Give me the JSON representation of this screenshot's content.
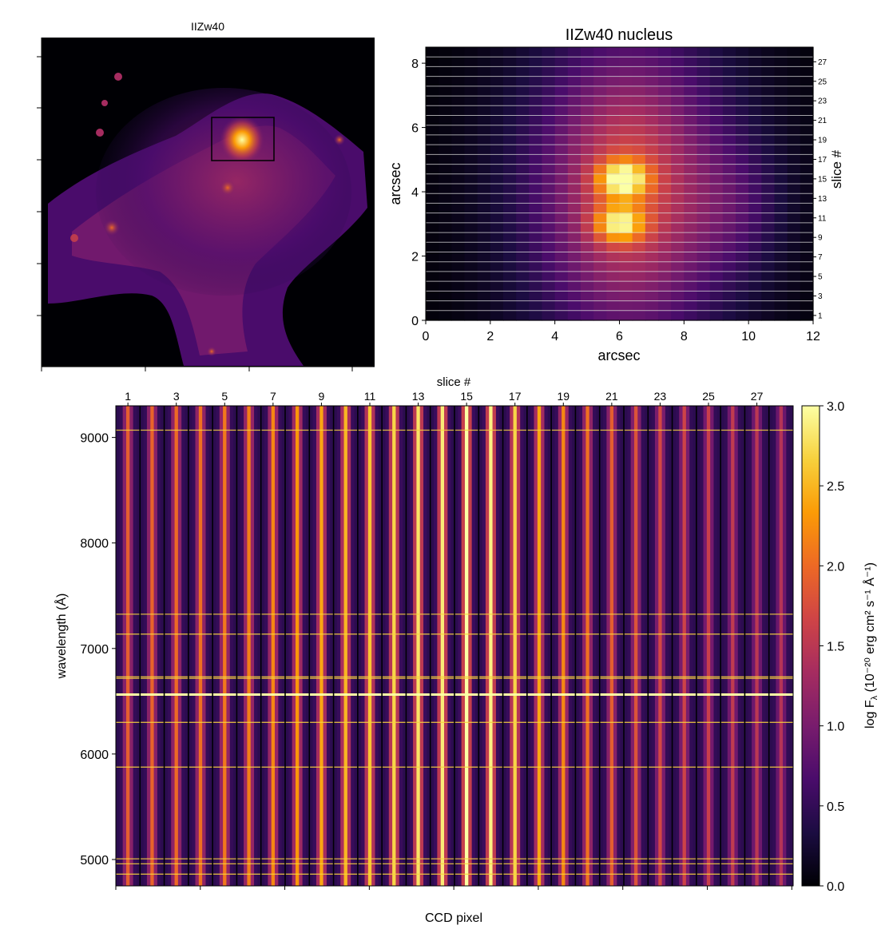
{
  "chart_data": [
    {
      "type": "heatmap",
      "title": "IIZw40",
      "xlabel": "",
      "ylabel": "",
      "annotations": [
        "box marking the nucleus region"
      ],
      "colormap": "inferno"
    },
    {
      "type": "heatmap",
      "title": "IIZw40 nucleus",
      "xlabel": "arcsec",
      "ylabel": "arcsec",
      "right_axis_label": "slice #",
      "xlim": [
        0,
        12
      ],
      "ylim": [
        0,
        8.5
      ],
      "xticks": [
        0,
        2,
        4,
        6,
        8,
        10,
        12
      ],
      "yticks": [
        0,
        2,
        4,
        6,
        8
      ],
      "slice_labels": [
        "1",
        "3",
        "5",
        "7",
        "9",
        "11",
        "13",
        "15",
        "17",
        "19",
        "21",
        "23",
        "25",
        "27"
      ],
      "n_slices": 28,
      "peaks": [
        {
          "x": 6.1,
          "y": 4.4,
          "level": 3.0
        },
        {
          "x": 6.0,
          "y": 3.0,
          "level": 2.6
        }
      ],
      "colormap": "inferno"
    },
    {
      "type": "heatmap",
      "top_axis_label": "slice #",
      "xlabel": "CCD pixel",
      "ylabel": "wavelength (Å)",
      "ylim": [
        4750,
        9300
      ],
      "yticks": [
        "5000",
        "6000",
        "7000",
        "8000",
        "9000"
      ],
      "ytick_values": [
        5000,
        6000,
        7000,
        8000,
        9000
      ],
      "slice_labels": [
        "1",
        "3",
        "5",
        "7",
        "9",
        "11",
        "13",
        "15",
        "17",
        "19",
        "21",
        "23",
        "25",
        "27"
      ],
      "n_slices": 28,
      "emission_lines": [
        4861,
        4959,
        5007,
        5876,
        6300,
        6563,
        6717,
        6731,
        7136,
        7325,
        9069
      ],
      "slice_levels": [
        1.9,
        1.95,
        2.0,
        2.05,
        2.1,
        2.15,
        2.2,
        2.3,
        2.4,
        2.5,
        2.6,
        2.7,
        2.8,
        2.85,
        3.0,
        2.9,
        2.7,
        2.4,
        2.2,
        2.05,
        1.9,
        1.8,
        1.7,
        1.65,
        1.6,
        1.55,
        1.5,
        1.45
      ],
      "colorbar": {
        "label_text": "log F",
        "label_subscript": "λ",
        "label_rest": " (10⁻²⁰ erg cm² s⁻¹ Å⁻¹)",
        "range": [
          0.0,
          3.0
        ],
        "ticks": [
          "0.0",
          "0.5",
          "1.0",
          "1.5",
          "2.0",
          "2.5",
          "3.0"
        ]
      },
      "colormap": "inferno"
    }
  ],
  "colors": {
    "inferno": [
      "#000004",
      "#1b0c41",
      "#4a0c6b",
      "#781c6d",
      "#a52c60",
      "#cf4446",
      "#ed6925",
      "#fb9b06",
      "#f7d13d",
      "#fcffa4"
    ],
    "box": "#000000",
    "background": "#ffffff"
  }
}
